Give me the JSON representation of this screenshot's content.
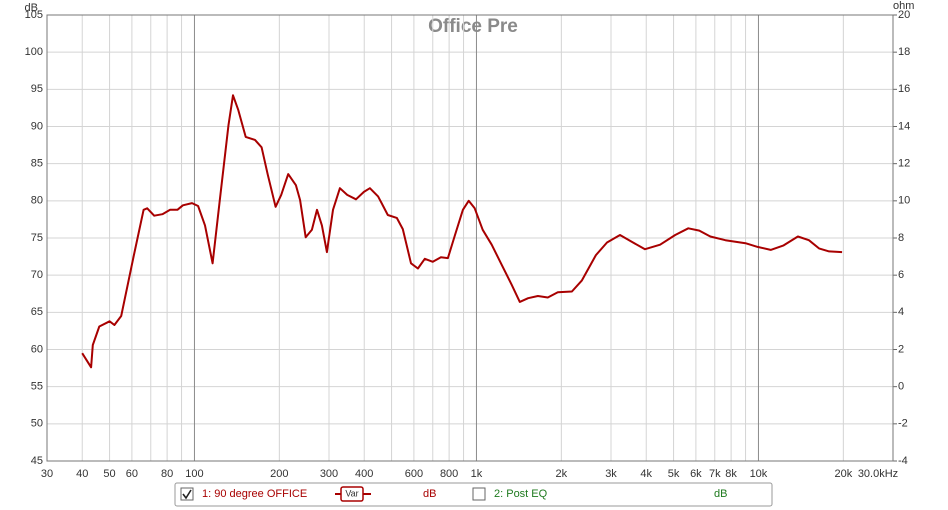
{
  "chart_data": {
    "type": "line",
    "title": "Office Pre",
    "ylabel": "dB",
    "y2label": "ohm",
    "log_x": true,
    "grid": true,
    "xlim": [
      30,
      30000
    ],
    "ylim": [
      45,
      105
    ],
    "y2lim": [
      -4,
      20
    ],
    "xticks": [
      30,
      40,
      50,
      60,
      80,
      100,
      200,
      300,
      400,
      600,
      800,
      {
        "value": 1000,
        "label": "1k"
      },
      {
        "value": 2000,
        "label": "2k"
      },
      {
        "value": 3000,
        "label": "3k"
      },
      {
        "value": 4000,
        "label": "4k"
      },
      {
        "value": 5000,
        "label": "5k"
      },
      {
        "value": 6000,
        "label": "6k"
      },
      {
        "value": 7000,
        "label": "7k"
      },
      {
        "value": 8000,
        "label": "8k"
      },
      {
        "value": 10000,
        "label": "10k"
      },
      {
        "value": 20000,
        "label": "20k"
      },
      {
        "value": 30000,
        "label": "30.0kHz"
      }
    ],
    "xgrid_minor": [
      70,
      90,
      500,
      700,
      900,
      9000
    ],
    "yticks": [
      45,
      50,
      55,
      60,
      65,
      70,
      75,
      80,
      85,
      90,
      95,
      100,
      105
    ],
    "y2ticks": [
      -4,
      -2,
      0,
      2,
      4,
      6,
      8,
      10,
      12,
      14,
      16,
      18,
      20
    ],
    "x": [
      40,
      43,
      43.6,
      46,
      50,
      52,
      55,
      61,
      66,
      68,
      72,
      77,
      82,
      87,
      91,
      98,
      103,
      109,
      116,
      123,
      132,
      137,
      143,
      152,
      164,
      173,
      182,
      194,
      203,
      215,
      229,
      237,
      248,
      261,
      272,
      283,
      295,
      310,
      328,
      348,
      374,
      399,
      419,
      448,
      485,
      522,
      548,
      586,
      620,
      656,
      700,
      748,
      792,
      839,
      895,
      939,
      986,
      1052,
      1133,
      1229,
      1334,
      1425,
      1525,
      1652,
      1790,
      1943,
      2180,
      2365,
      2652,
      2903,
      3228,
      3590,
      3960,
      4478,
      5067,
      5638,
      6169,
      6751,
      7634,
      8999,
      9933,
      11050,
      12280,
      13800,
      15100,
      16400,
      17800,
      19800
    ],
    "series": [
      {
        "name": "1: 90 degree OFFICE",
        "color": "#a80000",
        "tag": "Var",
        "unit": "dB",
        "checked": true,
        "values": [
          59.5,
          57.6,
          60.6,
          63.1,
          63.8,
          63.3,
          64.5,
          72.7,
          78.8,
          79.0,
          78.0,
          78.2,
          78.8,
          78.8,
          79.4,
          79.7,
          79.3,
          76.7,
          71.6,
          80.1,
          90.2,
          94.2,
          92.2,
          88.6,
          88.2,
          87.2,
          83.5,
          79.2,
          80.8,
          83.6,
          82.1,
          80.1,
          75.1,
          76.1,
          78.8,
          76.7,
          73.1,
          78.8,
          81.7,
          80.8,
          80.2,
          81.2,
          81.7,
          80.6,
          78.1,
          77.7,
          76.2,
          71.6,
          70.9,
          72.2,
          71.8,
          72.4,
          72.3,
          75.4,
          78.8,
          80.0,
          79.0,
          76.1,
          74.1,
          71.4,
          68.7,
          66.4,
          66.9,
          67.2,
          67.0,
          67.7,
          67.8,
          69.3,
          72.7,
          74.4,
          75.4,
          74.4,
          73.5,
          74.1,
          75.4,
          76.3,
          76.0,
          75.2,
          74.7,
          74.3,
          73.8,
          73.4,
          74.0,
          75.2,
          74.7,
          73.6,
          73.2,
          73.1
        ]
      },
      {
        "name": "2: Post EQ",
        "color": "#1e7a1e",
        "unit": "dB",
        "checked": false
      }
    ]
  }
}
